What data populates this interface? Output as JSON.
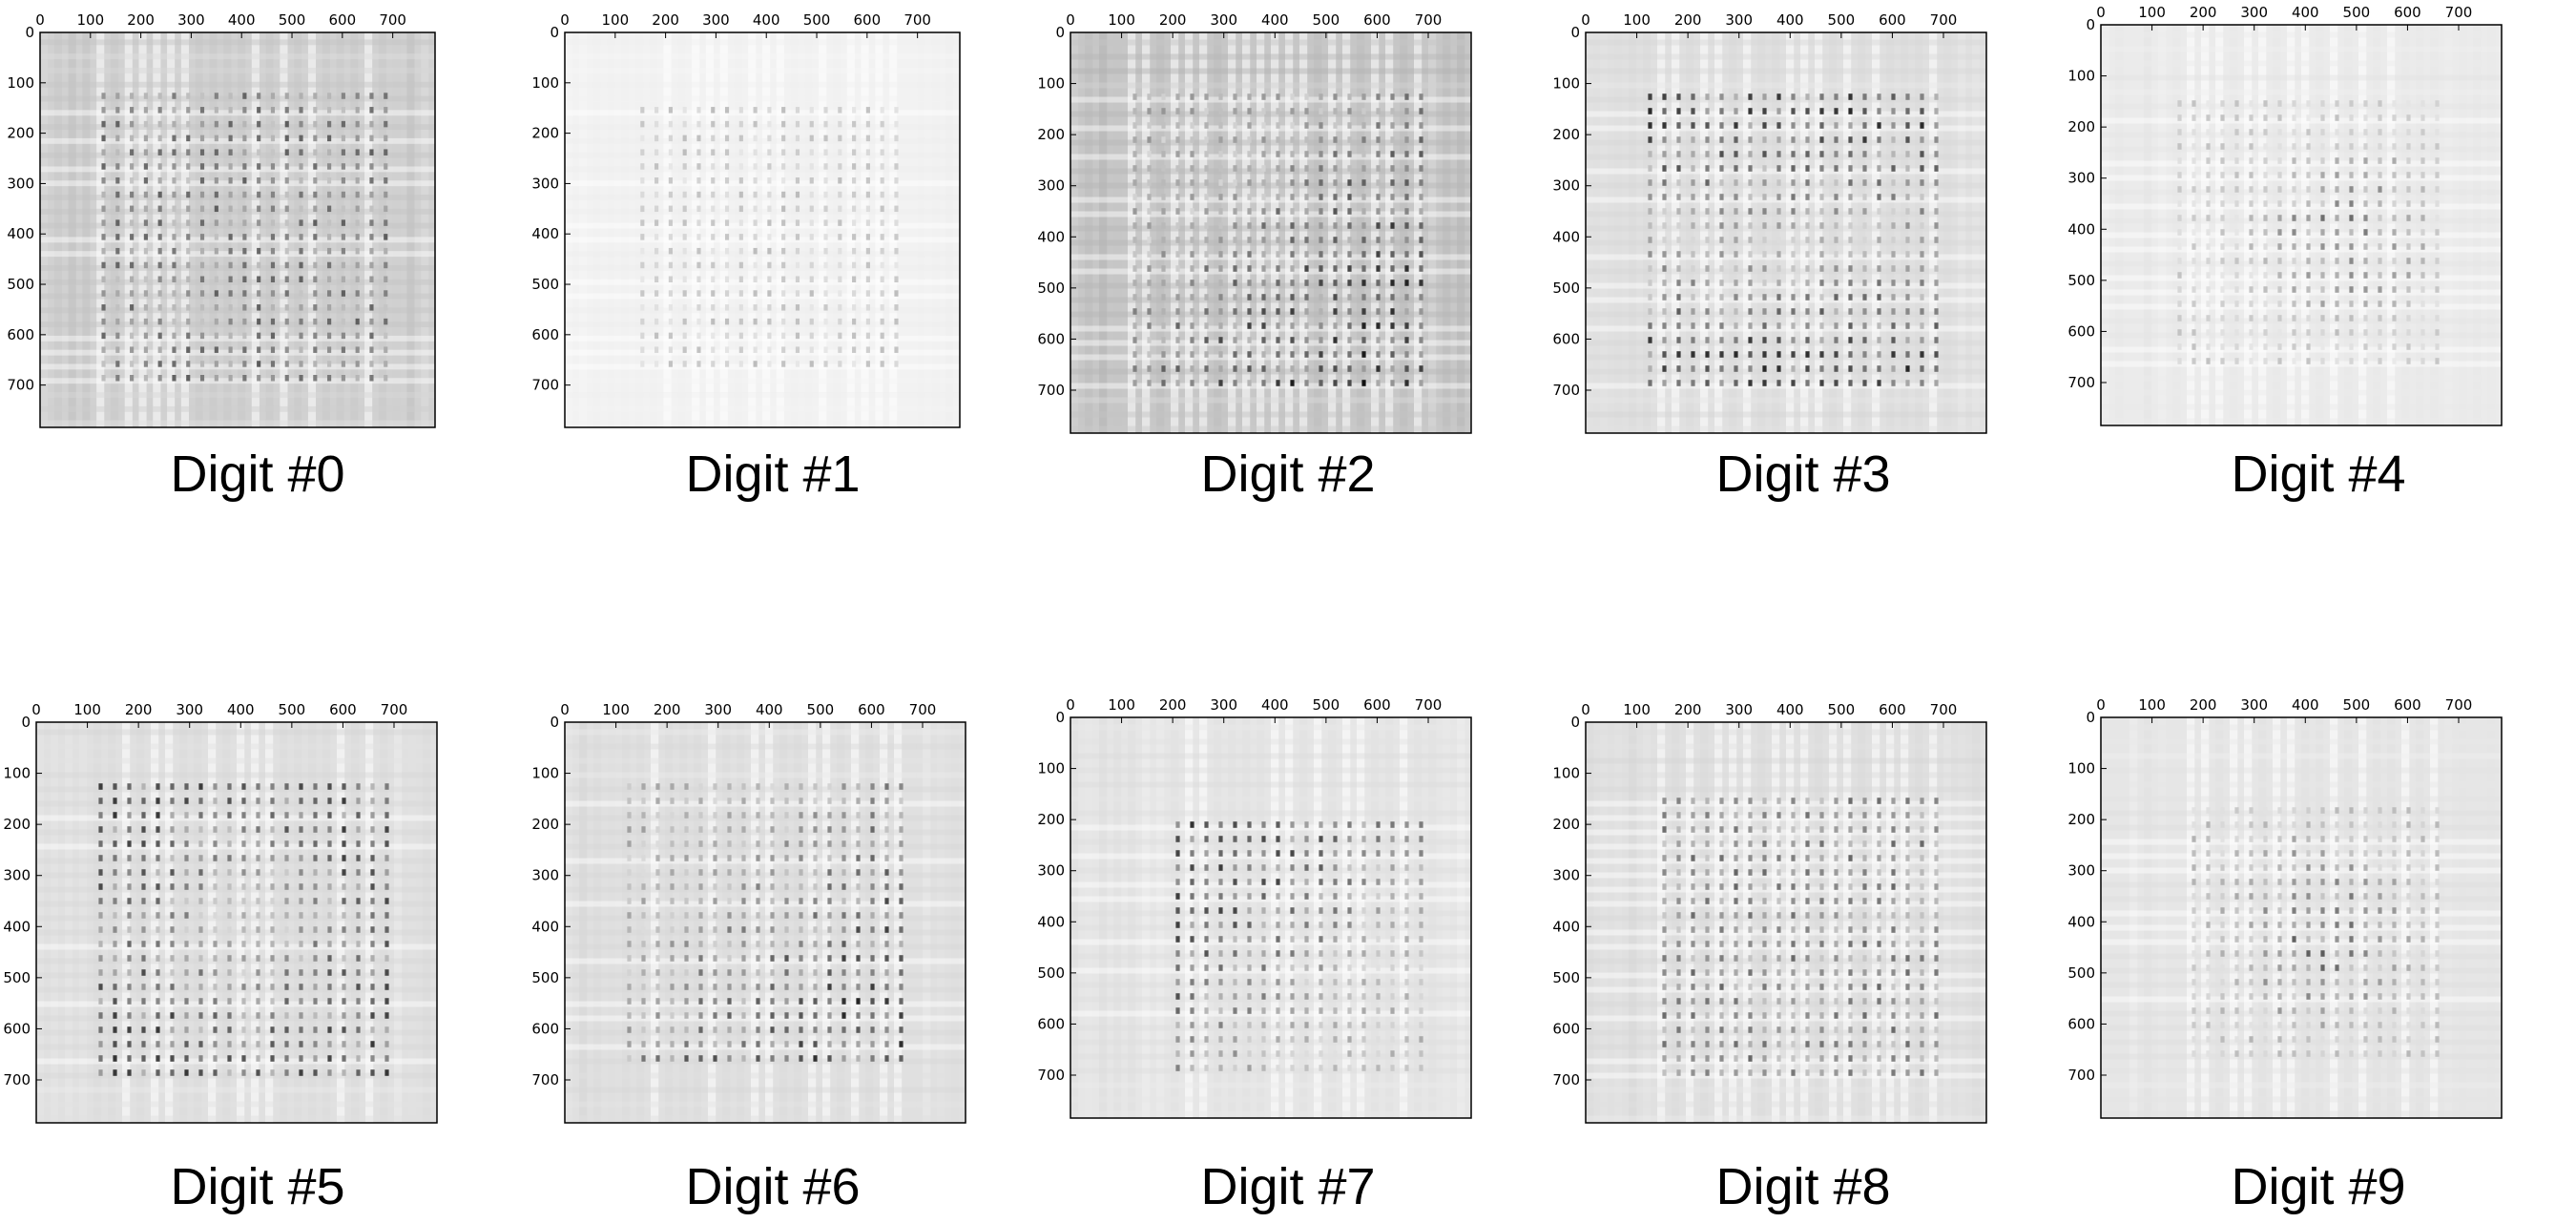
{
  "colors": {
    "background": "#ffffff",
    "frame": "#000000",
    "colormap": "gray_r"
  },
  "chart_data": [
    {
      "type": "heatmap",
      "title": "Digit #0",
      "x_ticks": [
        0,
        100,
        200,
        300,
        400,
        500,
        600,
        700
      ],
      "y_ticks": [
        0,
        100,
        200,
        300,
        400,
        500,
        600,
        700
      ],
      "xlim": [
        0,
        784
      ],
      "ylim": [
        784,
        0
      ],
      "axis_position_x": "top",
      "grid": false,
      "legend": "none",
      "pattern": {
        "grid_cells": 28,
        "active_range": [
          4,
          24
        ],
        "intensity": 0.85,
        "baseline": 0.18,
        "focus": "uniform"
      }
    },
    {
      "type": "heatmap",
      "title": "Digit #1",
      "x_ticks": [
        0,
        100,
        200,
        300,
        400,
        500,
        600,
        700
      ],
      "y_ticks": [
        0,
        100,
        200,
        300,
        400,
        500,
        600,
        700
      ],
      "xlim": [
        0,
        784
      ],
      "ylim": [
        784,
        0
      ],
      "axis_position_x": "top",
      "grid": false,
      "legend": "none",
      "pattern": {
        "grid_cells": 28,
        "active_range": [
          5,
          23
        ],
        "intensity": 0.35,
        "baseline": 0.05,
        "focus": "uniform"
      }
    },
    {
      "type": "heatmap",
      "title": "Digit #2",
      "x_ticks": [
        0,
        100,
        200,
        300,
        400,
        500,
        600,
        700
      ],
      "y_ticks": [
        0,
        100,
        200,
        300,
        400,
        500,
        600,
        700
      ],
      "xlim": [
        0,
        784
      ],
      "ylim": [
        784,
        0
      ],
      "axis_position_x": "top",
      "grid": false,
      "legend": "none",
      "pattern": {
        "grid_cells": 28,
        "active_range": [
          4,
          24
        ],
        "intensity": 0.95,
        "baseline": 0.22,
        "focus": "lower-right"
      }
    },
    {
      "type": "heatmap",
      "title": "Digit #3",
      "x_ticks": [
        0,
        100,
        200,
        300,
        400,
        500,
        600,
        700
      ],
      "y_ticks": [
        0,
        100,
        200,
        300,
        400,
        500,
        600,
        700
      ],
      "xlim": [
        0,
        784
      ],
      "ylim": [
        784,
        0
      ],
      "axis_position_x": "top",
      "grid": false,
      "legend": "none",
      "pattern": {
        "grid_cells": 28,
        "active_range": [
          4,
          24
        ],
        "intensity": 0.85,
        "baseline": 0.12,
        "focus": "top-bottom"
      }
    },
    {
      "type": "heatmap",
      "title": "Digit #4",
      "x_ticks": [
        0,
        100,
        200,
        300,
        400,
        500,
        600,
        700
      ],
      "y_ticks": [
        0,
        100,
        200,
        300,
        400,
        500,
        600,
        700
      ],
      "xlim": [
        0,
        784
      ],
      "ylim": [
        784,
        0
      ],
      "axis_position_x": "top",
      "grid": false,
      "legend": "none",
      "pattern": {
        "grid_cells": 28,
        "active_range": [
          5,
          23
        ],
        "intensity": 0.7,
        "baseline": 0.08,
        "focus": "center-right"
      }
    },
    {
      "type": "heatmap",
      "title": "Digit #5",
      "x_ticks": [
        0,
        100,
        200,
        300,
        400,
        500,
        600,
        700
      ],
      "y_ticks": [
        0,
        100,
        200,
        300,
        400,
        500,
        600,
        700
      ],
      "xlim": [
        0,
        784
      ],
      "ylim": [
        784,
        0
      ],
      "axis_position_x": "top",
      "grid": false,
      "legend": "none",
      "pattern": {
        "grid_cells": 28,
        "active_range": [
          4,
          24
        ],
        "intensity": 0.8,
        "baseline": 0.12,
        "focus": "corners"
      }
    },
    {
      "type": "heatmap",
      "title": "Digit #6",
      "x_ticks": [
        0,
        100,
        200,
        300,
        400,
        500,
        600,
        700
      ],
      "y_ticks": [
        0,
        100,
        200,
        300,
        400,
        500,
        600,
        700
      ],
      "xlim": [
        0,
        784
      ],
      "ylim": [
        784,
        0
      ],
      "axis_position_x": "top",
      "grid": false,
      "legend": "none",
      "pattern": {
        "grid_cells": 28,
        "active_range": [
          4,
          23
        ],
        "intensity": 0.85,
        "baseline": 0.12,
        "focus": "lower-right"
      }
    },
    {
      "type": "heatmap",
      "title": "Digit #7",
      "x_ticks": [
        0,
        100,
        200,
        300,
        400,
        500,
        600,
        700
      ],
      "y_ticks": [
        0,
        100,
        200,
        300,
        400,
        500,
        600,
        700
      ],
      "xlim": [
        0,
        784
      ],
      "ylim": [
        784,
        0
      ],
      "axis_position_x": "top",
      "grid": false,
      "legend": "none",
      "pattern": {
        "grid_cells": 28,
        "active_range": [
          7,
          24
        ],
        "intensity": 0.85,
        "baseline": 0.1,
        "focus": "upper-left"
      }
    },
    {
      "type": "heatmap",
      "title": "Digit #8",
      "x_ticks": [
        0,
        100,
        200,
        300,
        400,
        500,
        600,
        700
      ],
      "y_ticks": [
        0,
        100,
        200,
        300,
        400,
        500,
        600,
        700
      ],
      "xlim": [
        0,
        784
      ],
      "ylim": [
        784,
        0
      ],
      "axis_position_x": "top",
      "grid": false,
      "legend": "none",
      "pattern": {
        "grid_cells": 28,
        "active_range": [
          5,
          24
        ],
        "intensity": 0.8,
        "baseline": 0.12,
        "focus": "uniform"
      }
    },
    {
      "type": "heatmap",
      "title": "Digit #9",
      "x_ticks": [
        0,
        100,
        200,
        300,
        400,
        500,
        600,
        700
      ],
      "y_ticks": [
        0,
        100,
        200,
        300,
        400,
        500,
        600,
        700
      ],
      "xlim": [
        0,
        784
      ],
      "ylim": [
        784,
        0
      ],
      "axis_position_x": "top",
      "grid": false,
      "legend": "none",
      "pattern": {
        "grid_cells": 28,
        "active_range": [
          6,
          23
        ],
        "intensity": 0.75,
        "baseline": 0.1,
        "focus": "center"
      }
    }
  ]
}
